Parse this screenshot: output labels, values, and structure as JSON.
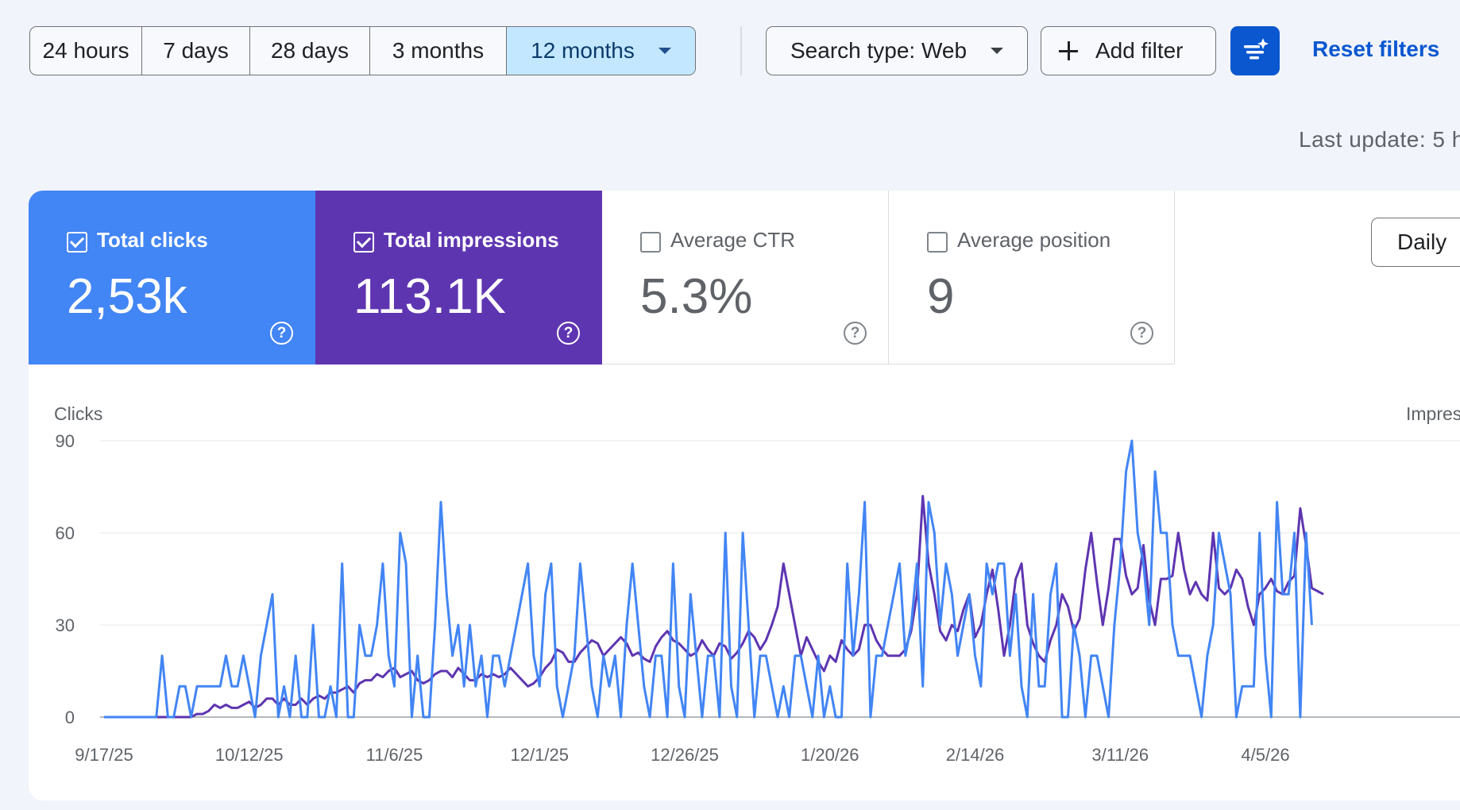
{
  "toolbar": {
    "ranges": [
      "24 hours",
      "7 days",
      "28 days",
      "3 months",
      "12 months"
    ],
    "active_range": "12 months",
    "search_type_label": "Search type: Web",
    "add_filter_label": "Add filter",
    "reset_filters_label": "Reset filters",
    "accent_color": "#0b57d0"
  },
  "last_update": "Last update: 5 h",
  "metrics": [
    {
      "label": "Total clicks",
      "value": "2,53k",
      "checked": true,
      "color": "#4285f4"
    },
    {
      "label": "Total impressions",
      "value": "113.1K",
      "checked": true,
      "color": "#5e35b1"
    },
    {
      "label": "Average CTR",
      "value": "5.3%",
      "checked": false
    },
    {
      "label": "Average position",
      "value": "9",
      "checked": false
    }
  ],
  "daily_label": "Daily",
  "help_glyph": "?",
  "chart_data": {
    "type": "line",
    "left_axis_label": "Clicks",
    "right_axis_label": "Impres",
    "y_ticks": [
      0,
      30,
      60,
      90
    ],
    "ylim": [
      0,
      90
    ],
    "x_tick_labels": [
      "9/17/25",
      "10/12/25",
      "11/6/25",
      "12/1/25",
      "12/26/25",
      "1/20/26",
      "2/14/26",
      "3/11/26",
      "4/5/26"
    ],
    "x_tick_days": [
      0,
      25,
      50,
      75,
      100,
      125,
      150,
      175,
      200
    ],
    "xlim_days": [
      0,
      207
    ],
    "grid": true,
    "series": [
      {
        "name": "Clicks",
        "color": "#4285f4",
        "values": [
          0,
          0,
          0,
          0,
          0,
          0,
          0,
          0,
          0,
          0,
          20,
          0,
          0,
          10,
          10,
          0,
          10,
          10,
          10,
          10,
          10,
          20,
          10,
          10,
          20,
          10,
          0,
          20,
          30,
          40,
          0,
          10,
          0,
          20,
          0,
          0,
          30,
          0,
          0,
          10,
          0,
          50,
          0,
          0,
          30,
          20,
          20,
          30,
          50,
          20,
          10,
          60,
          50,
          0,
          20,
          0,
          0,
          30,
          70,
          40,
          20,
          30,
          10,
          30,
          10,
          20,
          0,
          20,
          20,
          10,
          20,
          30,
          40,
          50,
          20,
          10,
          40,
          50,
          10,
          0,
          10,
          20,
          50,
          30,
          10,
          0,
          20,
          10,
          20,
          0,
          30,
          50,
          30,
          10,
          0,
          20,
          20,
          0,
          50,
          10,
          0,
          40,
          20,
          0,
          20,
          20,
          0,
          60,
          10,
          0,
          60,
          30,
          0,
          20,
          20,
          10,
          0,
          10,
          0,
          20,
          20,
          10,
          0,
          20,
          0,
          10,
          0,
          0,
          50,
          20,
          40,
          70,
          0,
          20,
          20,
          30,
          40,
          50,
          20,
          30,
          50,
          10,
          70,
          60,
          30,
          50,
          40,
          20,
          30,
          40,
          20,
          10,
          50,
          40,
          50,
          50,
          20,
          40,
          10,
          0,
          40,
          10,
          10,
          40,
          50,
          0,
          0,
          30,
          20,
          0,
          20,
          20,
          10,
          0,
          30,
          50,
          80,
          90,
          60,
          50,
          30,
          80,
          60,
          60,
          30,
          20,
          20,
          20,
          10,
          0,
          20,
          30,
          60,
          50,
          40,
          0,
          10,
          10,
          10,
          60,
          20,
          0,
          70,
          40,
          40,
          60,
          0,
          60,
          30
        ],
        "values_note": "approximate daily values read from chart"
      },
      {
        "name": "Impressions",
        "color": "#5e35b1",
        "values": [
          0,
          0,
          0,
          0,
          0,
          0,
          0,
          0,
          0,
          0,
          0,
          0,
          0,
          0,
          0,
          0,
          1,
          1,
          2,
          4,
          3,
          4,
          3,
          3,
          4,
          5,
          3,
          4,
          6,
          6,
          4,
          6,
          4,
          4,
          6,
          4,
          6,
          7,
          6,
          8,
          8,
          9,
          10,
          8,
          11,
          12,
          12,
          14,
          13,
          15,
          16,
          13,
          14,
          15,
          12,
          11,
          12,
          14,
          15,
          15,
          13,
          16,
          14,
          12,
          12,
          14,
          13,
          14,
          13,
          14,
          16,
          14,
          12,
          10,
          11,
          13,
          16,
          18,
          22,
          21,
          18,
          18,
          21,
          23,
          25,
          24,
          20,
          22,
          24,
          26,
          24,
          20,
          21,
          19,
          18,
          23,
          26,
          28,
          25,
          24,
          22,
          20,
          21,
          25,
          22,
          20,
          24,
          23,
          19,
          21,
          24,
          28,
          26,
          22,
          25,
          30,
          36,
          50,
          40,
          30,
          20,
          26,
          22,
          18,
          15,
          20,
          18,
          25,
          22,
          20,
          22,
          30,
          30,
          25,
          22,
          20,
          20,
          20,
          22,
          28,
          40,
          72,
          50,
          40,
          28,
          25,
          30,
          28,
          35,
          40,
          26,
          30,
          40,
          48,
          35,
          20,
          30,
          45,
          50,
          30,
          24,
          20,
          18,
          25,
          30,
          40,
          36,
          28,
          32,
          48,
          60,
          44,
          30,
          42,
          58,
          58,
          46,
          40,
          42,
          56,
          38,
          30,
          45,
          45,
          46,
          60,
          48,
          40,
          44,
          40,
          38,
          60,
          42,
          40,
          42,
          48,
          45,
          36,
          30,
          40,
          42,
          45,
          41,
          40,
          44,
          46,
          68,
          56,
          42,
          41,
          40
        ]
      }
    ]
  }
}
